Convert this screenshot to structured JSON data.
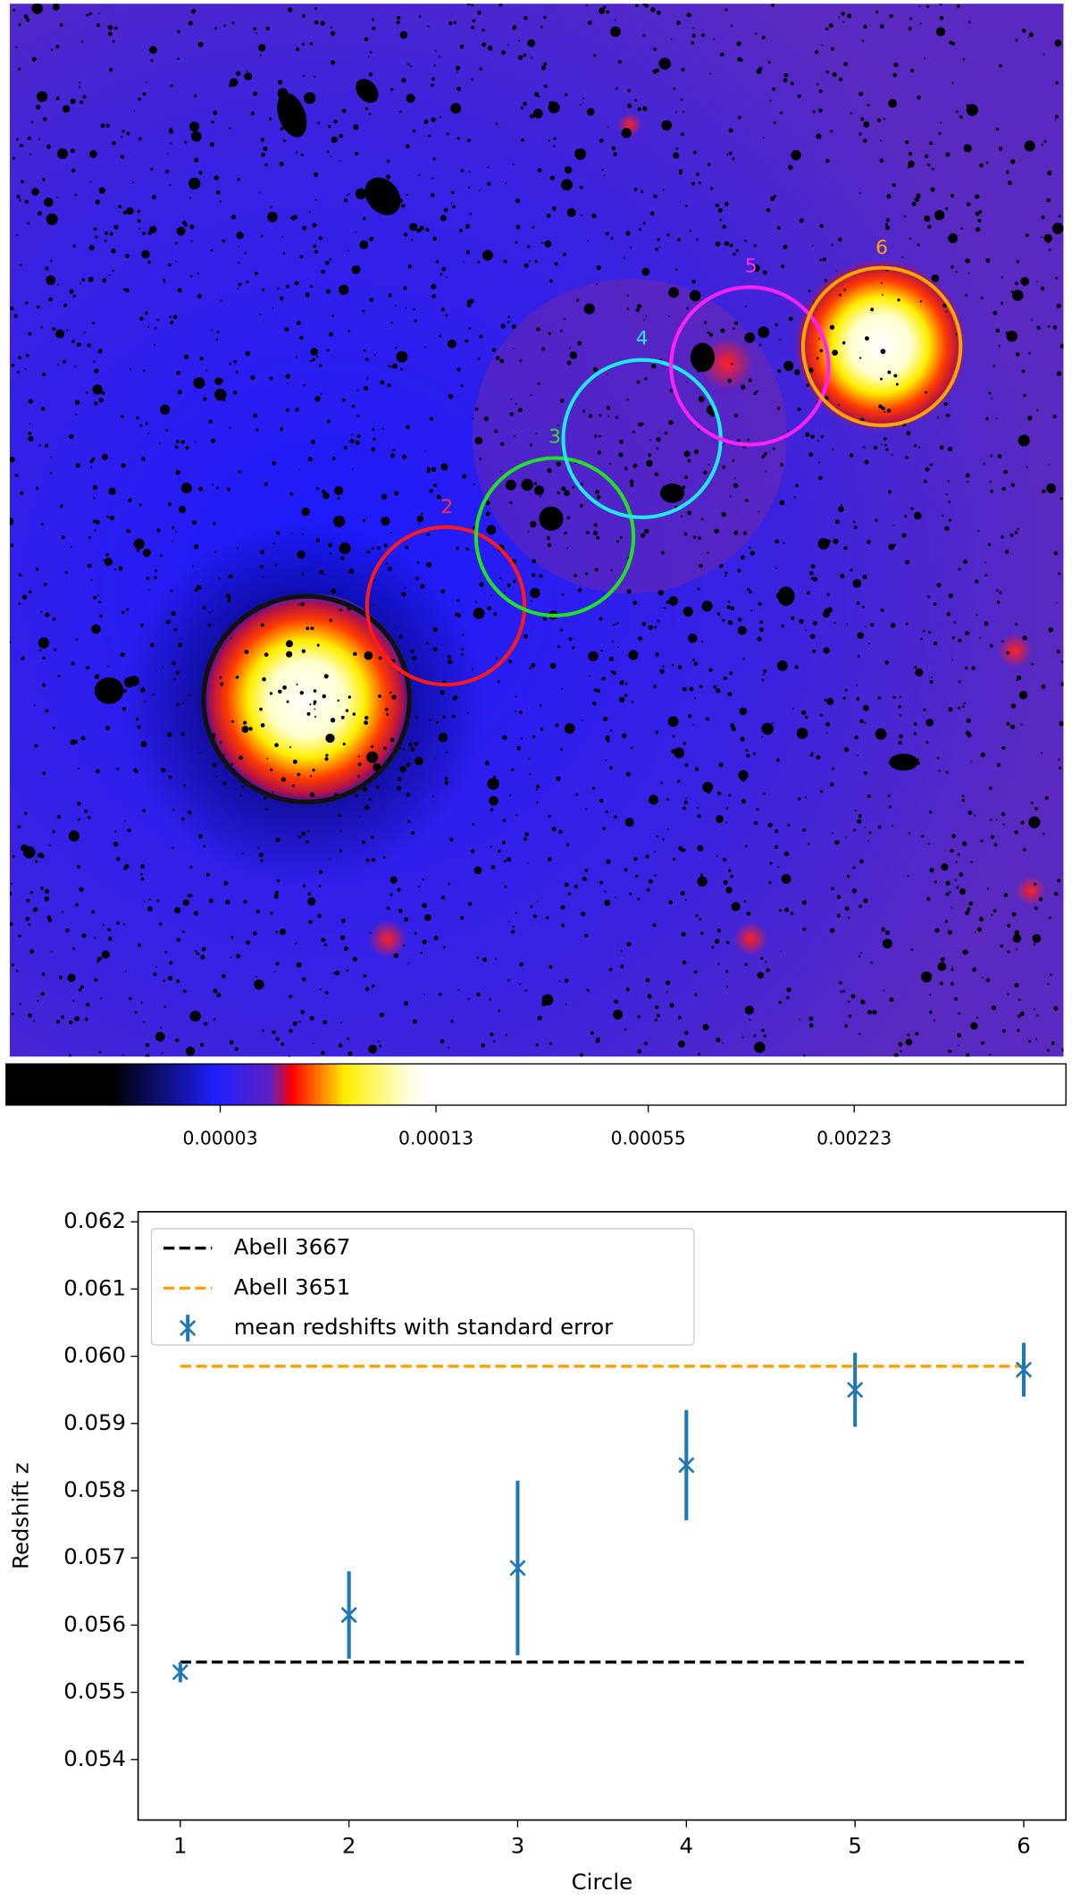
{
  "image": {
    "labels": [
      "2",
      "3",
      "4",
      "5",
      "6"
    ]
  },
  "chart_data": [
    {
      "type": "colorbar",
      "log": true,
      "xlim": [
        7e-06,
        0.0094
      ],
      "xticks": [
        3e-05,
        0.00013,
        0.00055,
        0.00223
      ]
    },
    {
      "type": "errorbar",
      "xlabel": "Circle",
      "ylabel": "Redshift z",
      "x": [
        1,
        2,
        3,
        4,
        5,
        6
      ],
      "series": [
        {
          "name": "mean redshifts with standard error",
          "color": "#1f77b4",
          "values": [
            0.0553,
            0.05615,
            0.05685,
            0.05838,
            0.0595,
            0.0598
          ],
          "errors": [
            0.00015,
            0.00065,
            0.0013,
            0.00082,
            0.00055,
            0.0004
          ]
        }
      ],
      "hlines": [
        {
          "name": "Abell 3667",
          "color": "#000000",
          "y": 0.05545,
          "xrange": [
            1,
            6
          ]
        },
        {
          "name": "Abell 3651",
          "color": "#ff9f00",
          "y": 0.05985,
          "xrange": [
            1,
            6
          ]
        }
      ],
      "xlim": [
        0.75,
        6.25
      ],
      "ylim": [
        0.0531,
        0.06215
      ],
      "xticks": [
        1,
        2,
        3,
        4,
        5,
        6
      ],
      "yticks": [
        0.054,
        0.055,
        0.056,
        0.057,
        0.058,
        0.059,
        {
          "value": 0.06,
          "label": "0.060"
        },
        0.061,
        0.062
      ],
      "legend": "upper left"
    }
  ]
}
